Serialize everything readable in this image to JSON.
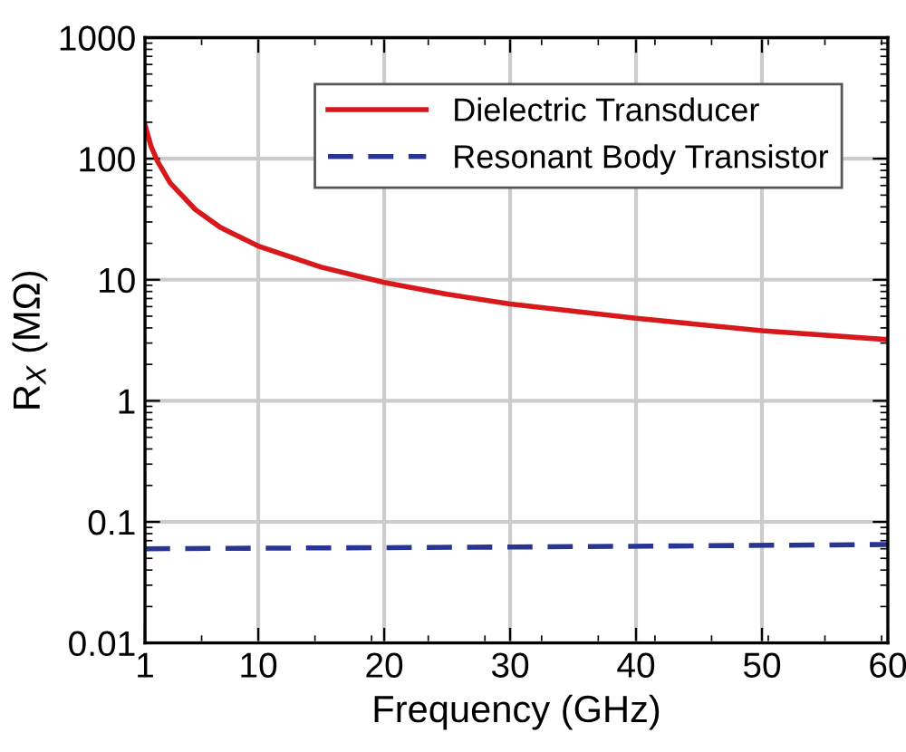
{
  "chart_data": {
    "type": "line",
    "xlabel": "Frequency (GHz)",
    "ylabel": "R$_{X}$ (MΩ)",
    "log": "y",
    "xlim": [
      1,
      60
    ],
    "xticks": [
      1,
      10,
      20,
      30,
      40,
      50,
      60
    ],
    "ylim": [
      0.01,
      1000
    ],
    "yticks": [
      0.01,
      0.1,
      1,
      10,
      100,
      1000
    ],
    "grid": true,
    "legend": "top right",
    "series": [
      {
        "name": "Dielectric Transducer",
        "color": "#d7191c",
        "line_style": "solid",
        "x": [
          1,
          1.5,
          2,
          3,
          5,
          7,
          10,
          15,
          20,
          25,
          30,
          40,
          50,
          60
        ],
        "values": [
          190,
          125,
          95,
          63,
          38,
          27,
          19,
          12.7,
          9.5,
          7.6,
          6.3,
          4.8,
          3.8,
          3.2
        ]
      },
      {
        "name": "Resonant Body Transistor",
        "color": "#283593",
        "line_style": "dashed",
        "x": [
          1,
          30,
          60
        ],
        "values": [
          0.06,
          0.062,
          0.065
        ]
      }
    ]
  }
}
